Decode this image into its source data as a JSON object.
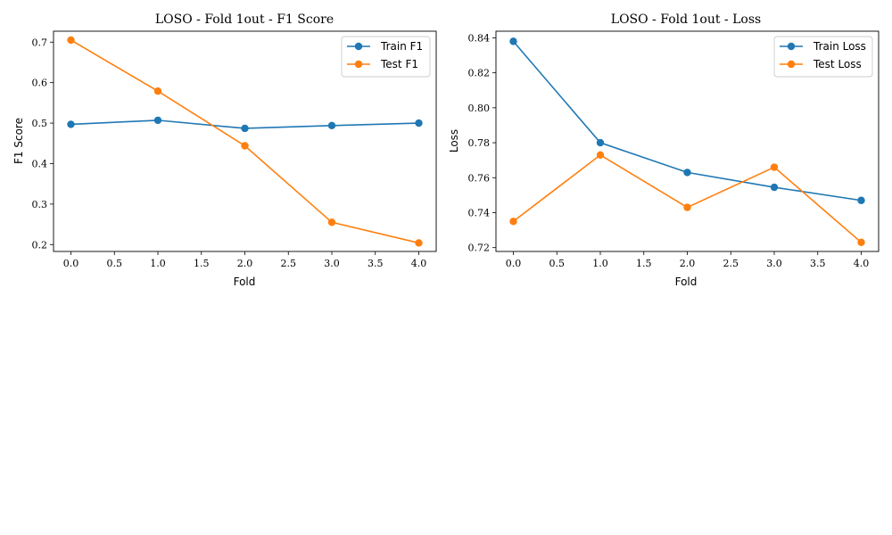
{
  "colors": {
    "train": "#1f77b4",
    "test": "#ff7f0e"
  },
  "chart_data": [
    {
      "type": "line",
      "title": "LOSO - Fold 1out - F1 Score",
      "xlabel": "Fold",
      "ylabel": "F1 Score",
      "x": [
        0,
        1,
        2,
        3,
        4
      ],
      "xlim": [
        -0.2,
        4.2
      ],
      "ylim": [
        0.183,
        0.727
      ],
      "xticks": [
        "0.0",
        "0.5",
        "1.0",
        "1.5",
        "2.0",
        "2.5",
        "3.0",
        "3.5",
        "4.0"
      ],
      "yticks": [
        "0.2",
        "0.3",
        "0.4",
        "0.5",
        "0.6",
        "0.7"
      ],
      "legend_position": "top-right",
      "series": [
        {
          "name": "Train F1",
          "color": "#1f77b4",
          "values": [
            0.497,
            0.507,
            0.487,
            0.494,
            0.5
          ]
        },
        {
          "name": "Test F1",
          "color": "#ff7f0e",
          "values": [
            0.705,
            0.579,
            0.444,
            0.255,
            0.204
          ]
        }
      ]
    },
    {
      "type": "line",
      "title": "LOSO - Fold 1out - Loss",
      "xlabel": "Fold",
      "ylabel": "Loss",
      "x": [
        0,
        1,
        2,
        3,
        4
      ],
      "xlim": [
        -0.2,
        4.2
      ],
      "ylim": [
        0.7178,
        0.8438
      ],
      "xticks": [
        "0.0",
        "0.5",
        "1.0",
        "1.5",
        "2.0",
        "2.5",
        "3.0",
        "3.5",
        "4.0"
      ],
      "yticks": [
        "0.72",
        "0.74",
        "0.76",
        "0.78",
        "0.80",
        "0.82",
        "0.84"
      ],
      "legend_position": "top-right",
      "series": [
        {
          "name": "Train Loss",
          "color": "#1f77b4",
          "values": [
            0.838,
            0.78,
            0.763,
            0.7545,
            0.747
          ]
        },
        {
          "name": "Test Loss",
          "color": "#ff7f0e",
          "values": [
            0.735,
            0.773,
            0.743,
            0.766,
            0.723
          ]
        }
      ]
    }
  ]
}
